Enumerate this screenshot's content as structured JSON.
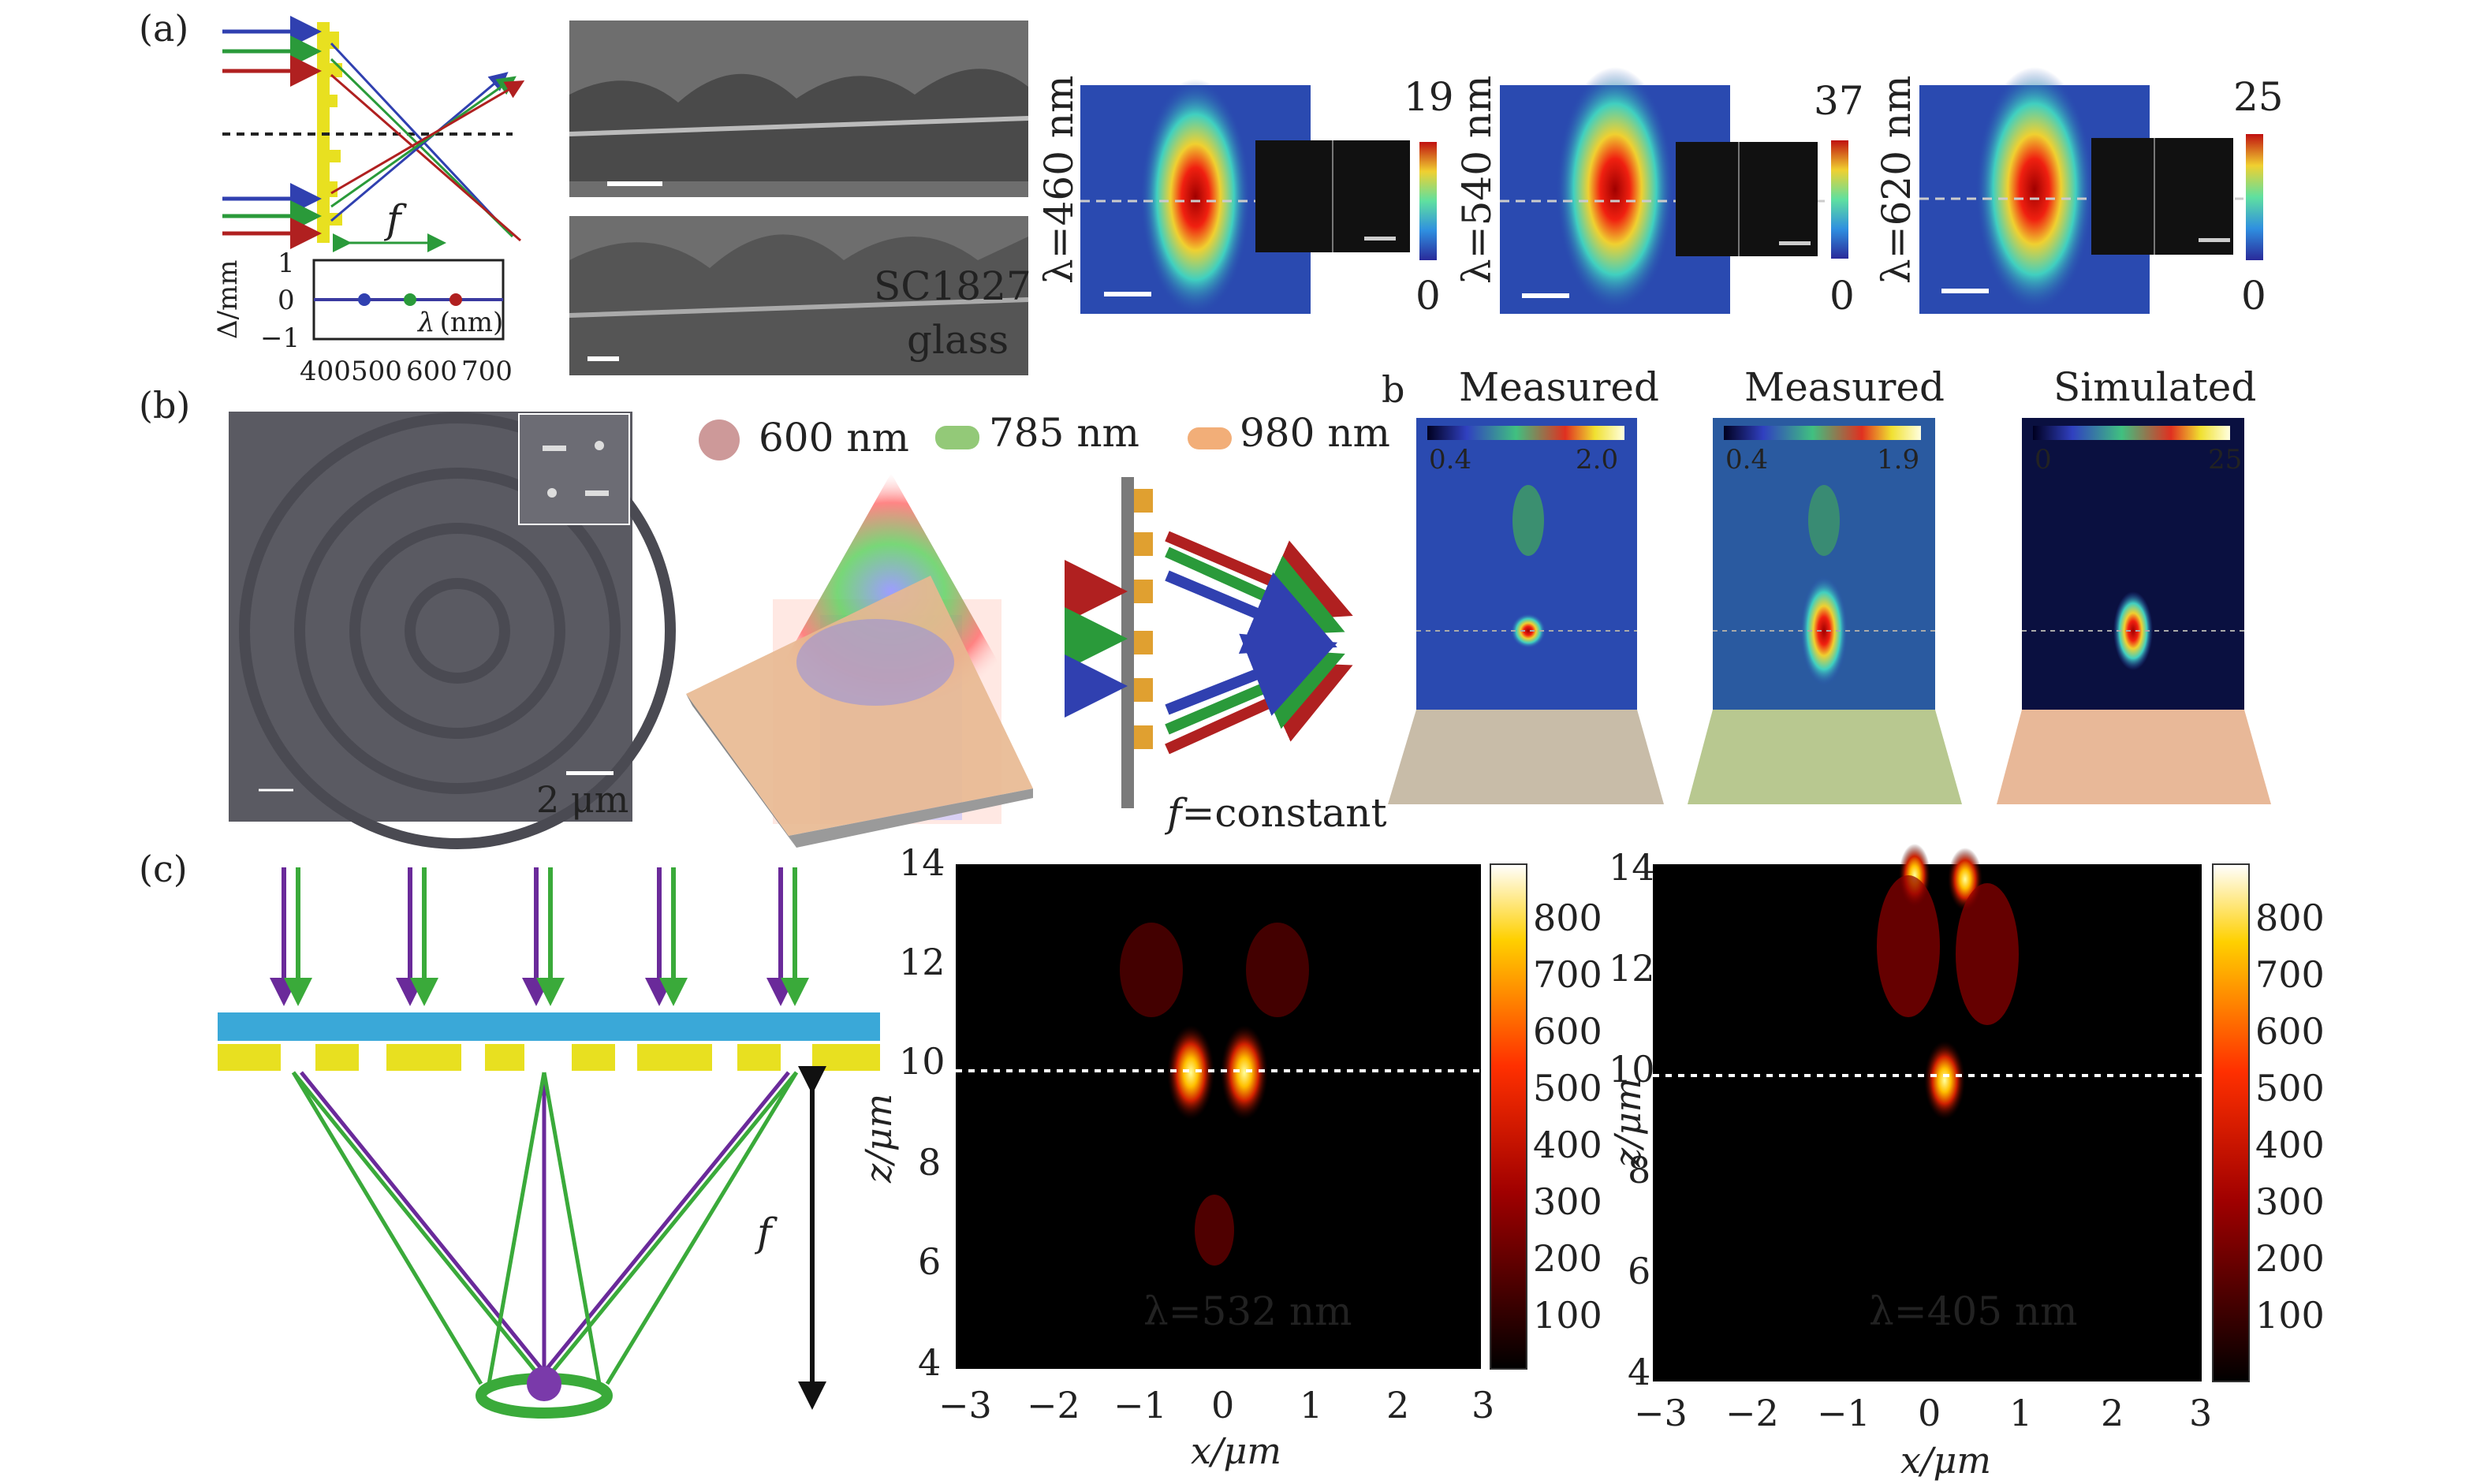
{
  "panels": {
    "a": {
      "label": "(a)",
      "chart": {
        "ylabel": "Δ/mm",
        "xlabel_prefix": "λ",
        "xlabel_suffix": "(nm)",
        "yticks": [
          "1",
          "0",
          "−1"
        ],
        "xticks": [
          "400",
          "500",
          "600",
          "700"
        ],
        "focal": "f"
      },
      "sem": {
        "sample_label": "SC1827",
        "substrate_label": "glass"
      },
      "maps": [
        {
          "wavelength": "λ=460 nm",
          "colorbar_max": "19",
          "colorbar_min": "0"
        },
        {
          "wavelength": "λ=540 nm",
          "colorbar_max": "37",
          "colorbar_min": "0"
        },
        {
          "wavelength": "λ=620 nm",
          "colorbar_max": "25",
          "colorbar_min": "0"
        }
      ]
    },
    "b": {
      "label": "(b)",
      "sem_scale": "2 μm",
      "legend": [
        "600 nm",
        "785 nm",
        "980 nm"
      ],
      "focal_note_f": "f",
      "focal_note_rest": "=constant",
      "sub_label": "b",
      "measurements": [
        {
          "title": "Measured",
          "cb_min": "0.4",
          "cb_max": "2.0"
        },
        {
          "title": "Measured",
          "cb_min": "0.4",
          "cb_max": "1.9"
        },
        {
          "title": "Simulated",
          "cb_min": "0",
          "cb_max": "25"
        }
      ]
    },
    "c": {
      "label": "(c)",
      "focal": "f",
      "plots": [
        {
          "wavelength": "λ=532 nm"
        },
        {
          "wavelength": "λ=405 nm"
        }
      ],
      "xticks": [
        "−3",
        "−2",
        "−1",
        "0",
        "1",
        "2",
        "3"
      ],
      "yticks": [
        "14",
        "12",
        "10",
        "8",
        "6",
        "4"
      ],
      "xlabel": "x/μm",
      "ylabel": "z/μm",
      "colorbar_ticks": [
        "800",
        "700",
        "600",
        "500",
        "400",
        "300",
        "200",
        "100"
      ]
    }
  }
}
